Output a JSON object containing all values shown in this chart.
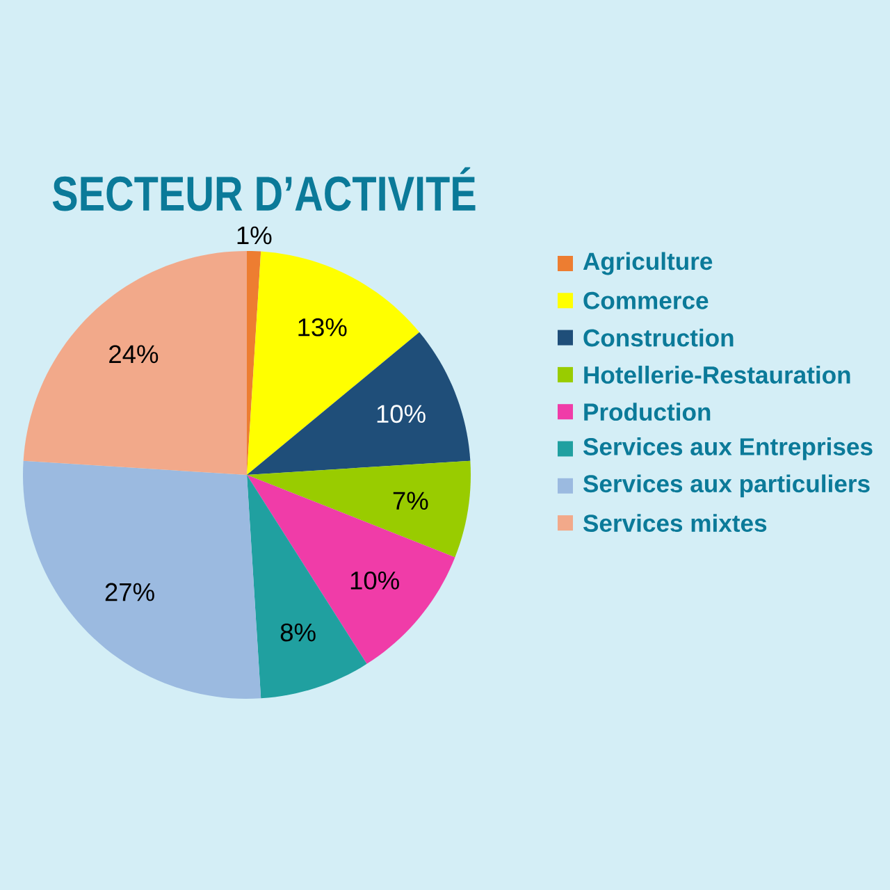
{
  "chart_data": {
    "type": "pie",
    "title": "SECTEUR D’ACTIVITÉ",
    "categories": [
      "Agriculture",
      "Commerce",
      "Construction",
      "Hotellerie-Restauration",
      "Production",
      "Services aux Entreprises",
      "Services aux particuliers",
      "Services mixtes"
    ],
    "values": [
      1,
      13,
      10,
      7,
      10,
      8,
      27,
      24
    ],
    "value_labels": [
      "1%",
      "13%",
      "10%",
      "7%",
      "10%",
      "8%",
      "27%",
      "24%"
    ],
    "colors": [
      "#ed7d31",
      "#ffff00",
      "#1f4e79",
      "#99cc00",
      "#f03ca8",
      "#20a0a0",
      "#9bbae0",
      "#f2a98a"
    ],
    "legend": "right"
  }
}
